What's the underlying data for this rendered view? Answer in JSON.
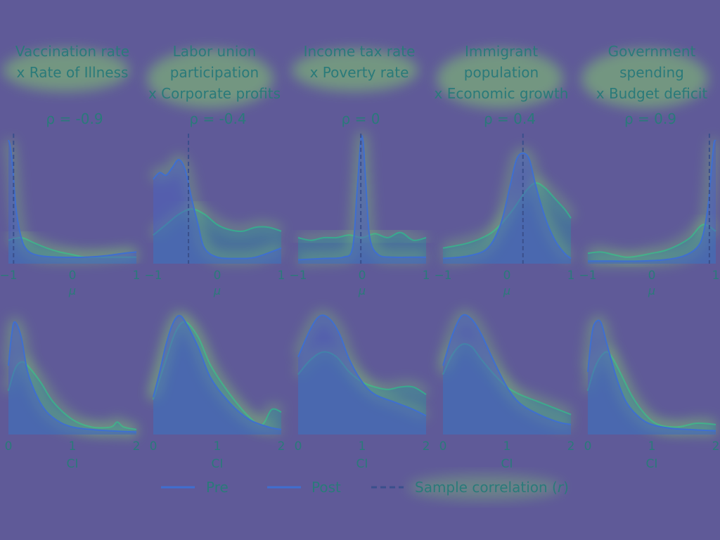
{
  "chart_data": {
    "type": "area",
    "colors": {
      "background": "#5f5a98",
      "pre": "#3f6fd0",
      "post": "#39a98f",
      "fill_pre": "#4a62c0",
      "fill_post": "#2f8aa0",
      "text": "#2a7a7a",
      "ref_line": "#3a4f8c",
      "glow": "#8ce066"
    },
    "legend": {
      "placement": "bottom-center",
      "entries": [
        {
          "label": "Pre",
          "style": "solid",
          "series": "pre"
        },
        {
          "label": "Post",
          "style": "solid",
          "series": "post"
        },
        {
          "label": "Sample correlation (",
          "italic": "r",
          "tail": ")",
          "style": "dashed"
        }
      ]
    },
    "top_row": {
      "xlabel": "μ",
      "xlim": [
        -1,
        1
      ],
      "ticks": [
        -1,
        0,
        1
      ],
      "tick_labels": [
        "−1",
        "0",
        "1"
      ]
    },
    "bottom_row": {
      "xlabel": "CI",
      "xlim": [
        0,
        2
      ],
      "ticks": [
        0,
        1,
        2
      ],
      "tick_labels": [
        "0",
        "1",
        "2"
      ]
    },
    "panels": [
      {
        "title": [
          "Vaccination rate",
          "x Rate of Illness"
        ],
        "rho": "ρ = -0.9",
        "r": -0.92,
        "mu_pre": {
          "x": [
            -1,
            -0.97,
            -0.93,
            -0.88,
            -0.8,
            -0.7,
            -0.5,
            -0.2,
            0.2,
            0.5,
            0.8,
            1
          ],
          "y": [
            0.95,
            0.9,
            0.72,
            0.42,
            0.2,
            0.1,
            0.06,
            0.05,
            0.05,
            0.06,
            0.08,
            0.09
          ]
        },
        "mu_post": {
          "x": [
            -1,
            -0.8,
            -0.6,
            -0.4,
            -0.2,
            0,
            0.2,
            0.4,
            0.6,
            0.8,
            1
          ],
          "y": [
            0.18,
            0.2,
            0.16,
            0.12,
            0.09,
            0.07,
            0.05,
            0.05,
            0.05,
            0.05,
            0.05
          ]
        },
        "ci_pre": {
          "x": [
            0,
            0.05,
            0.1,
            0.2,
            0.3,
            0.45,
            0.6,
            0.8,
            1,
            1.3,
            1.6,
            2
          ],
          "y": [
            0.55,
            0.8,
            0.9,
            0.78,
            0.5,
            0.3,
            0.18,
            0.1,
            0.06,
            0.04,
            0.03,
            0.02
          ]
        },
        "ci_post": {
          "x": [
            0,
            0.1,
            0.2,
            0.3,
            0.5,
            0.7,
            1,
            1.3,
            1.6,
            1.7,
            1.8,
            2
          ],
          "y": [
            0.35,
            0.52,
            0.58,
            0.55,
            0.42,
            0.26,
            0.12,
            0.06,
            0.06,
            0.1,
            0.06,
            0.04
          ]
        }
      },
      {
        "title": [
          "Labor union",
          "participation",
          "x Corporate profits"
        ],
        "rho": "ρ = -0.4",
        "r": -0.45,
        "mu_pre": {
          "x": [
            -1,
            -0.9,
            -0.8,
            -0.7,
            -0.6,
            -0.5,
            -0.4,
            -0.3,
            -0.2,
            0,
            0.3,
            0.6,
            1
          ],
          "y": [
            0.65,
            0.7,
            0.68,
            0.74,
            0.8,
            0.72,
            0.5,
            0.3,
            0.12,
            0.05,
            0.04,
            0.05,
            0.12
          ]
        },
        "mu_post": {
          "x": [
            -1,
            -0.8,
            -0.6,
            -0.4,
            -0.2,
            0,
            0.2,
            0.4,
            0.6,
            0.8,
            1
          ],
          "y": [
            0.22,
            0.3,
            0.38,
            0.42,
            0.38,
            0.3,
            0.26,
            0.25,
            0.28,
            0.28,
            0.25
          ]
        },
        "ci_pre": {
          "x": [
            0,
            0.1,
            0.2,
            0.3,
            0.4,
            0.5,
            0.7,
            0.9,
            1.2,
            1.5,
            1.8,
            2
          ],
          "y": [
            0.3,
            0.5,
            0.72,
            0.88,
            0.95,
            0.9,
            0.7,
            0.45,
            0.25,
            0.12,
            0.06,
            0.04
          ]
        },
        "ci_post": {
          "x": [
            0,
            0.2,
            0.35,
            0.5,
            0.7,
            0.9,
            1.2,
            1.5,
            1.7,
            1.85,
            2
          ],
          "y": [
            0.28,
            0.6,
            0.82,
            0.9,
            0.78,
            0.55,
            0.32,
            0.14,
            0.08,
            0.2,
            0.18
          ]
        }
      },
      {
        "title": [
          "Income tax rate",
          "x Poverty rate"
        ],
        "rho": "ρ = 0",
        "r": -0.02,
        "mu_pre": {
          "x": [
            -1,
            -0.6,
            -0.3,
            -0.15,
            -0.08,
            -0.02,
            0.02,
            0.06,
            0.12,
            0.25,
            0.5,
            0.75,
            1
          ],
          "y": [
            0.03,
            0.04,
            0.05,
            0.12,
            0.55,
            0.95,
            0.92,
            0.6,
            0.2,
            0.07,
            0.05,
            0.05,
            0.05
          ]
        },
        "mu_post": {
          "x": [
            -1,
            -0.8,
            -0.6,
            -0.4,
            -0.2,
            0,
            0.2,
            0.4,
            0.6,
            0.8,
            1
          ],
          "y": [
            0.2,
            0.18,
            0.2,
            0.2,
            0.22,
            0.2,
            0.23,
            0.2,
            0.24,
            0.18,
            0.2
          ]
        },
        "ci_pre": {
          "x": [
            0,
            0.2,
            0.35,
            0.5,
            0.65,
            0.8,
            1,
            1.2,
            1.5,
            1.8,
            2
          ],
          "y": [
            0.62,
            0.85,
            0.95,
            0.92,
            0.8,
            0.6,
            0.42,
            0.32,
            0.26,
            0.2,
            0.15
          ]
        },
        "ci_post": {
          "x": [
            0,
            0.2,
            0.4,
            0.6,
            0.8,
            1,
            1.2,
            1.4,
            1.6,
            1.8,
            2
          ],
          "y": [
            0.48,
            0.6,
            0.66,
            0.62,
            0.5,
            0.42,
            0.38,
            0.36,
            0.38,
            0.38,
            0.32
          ]
        }
      },
      {
        "title": [
          "Immigrant",
          "population",
          "x Economic growth"
        ],
        "rho": "ρ = 0.4",
        "r": 0.25,
        "mu_pre": {
          "x": [
            -1,
            -0.6,
            -0.3,
            -0.1,
            0.05,
            0.15,
            0.25,
            0.35,
            0.45,
            0.6,
            0.75,
            0.9,
            1
          ],
          "y": [
            0.04,
            0.06,
            0.12,
            0.3,
            0.6,
            0.8,
            0.85,
            0.8,
            0.6,
            0.35,
            0.18,
            0.08,
            0.04
          ]
        },
        "mu_post": {
          "x": [
            -1,
            -0.6,
            -0.3,
            -0.1,
            0.1,
            0.3,
            0.45,
            0.6,
            0.75,
            0.9,
            1
          ],
          "y": [
            0.12,
            0.16,
            0.22,
            0.3,
            0.42,
            0.56,
            0.62,
            0.58,
            0.5,
            0.42,
            0.35
          ]
        },
        "ci_pre": {
          "x": [
            0,
            0.15,
            0.3,
            0.45,
            0.6,
            0.8,
            1,
            1.2,
            1.5,
            1.8,
            2
          ],
          "y": [
            0.55,
            0.8,
            0.95,
            0.92,
            0.8,
            0.58,
            0.38,
            0.25,
            0.16,
            0.1,
            0.08
          ]
        },
        "ci_post": {
          "x": [
            0,
            0.15,
            0.3,
            0.45,
            0.6,
            0.8,
            1,
            1.2,
            1.5,
            1.8,
            2
          ],
          "y": [
            0.48,
            0.64,
            0.72,
            0.7,
            0.6,
            0.48,
            0.38,
            0.32,
            0.26,
            0.2,
            0.16
          ]
        }
      },
      {
        "title": [
          "Government",
          "spending",
          "x Budget deficit"
        ],
        "rho": "ρ = 0.9",
        "r": 0.9,
        "mu_pre": {
          "x": [
            -1,
            -0.6,
            -0.2,
            0.2,
            0.5,
            0.7,
            0.8,
            0.88,
            0.93,
            0.97,
            1
          ],
          "y": [
            0.02,
            0.02,
            0.02,
            0.03,
            0.06,
            0.12,
            0.22,
            0.45,
            0.72,
            0.92,
            0.95
          ]
        },
        "mu_post": {
          "x": [
            -1,
            -0.8,
            -0.6,
            -0.4,
            -0.2,
            0,
            0.2,
            0.4,
            0.6,
            0.8,
            1
          ],
          "y": [
            0.08,
            0.09,
            0.07,
            0.05,
            0.06,
            0.08,
            0.1,
            0.14,
            0.2,
            0.3,
            0.25
          ]
        },
        "ci_pre": {
          "x": [
            0,
            0.05,
            0.1,
            0.2,
            0.3,
            0.45,
            0.6,
            0.8,
            1,
            1.3,
            1.6,
            2
          ],
          "y": [
            0.5,
            0.75,
            0.88,
            0.9,
            0.72,
            0.45,
            0.26,
            0.14,
            0.08,
            0.05,
            0.04,
            0.03
          ]
        },
        "ci_post": {
          "x": [
            0,
            0.1,
            0.2,
            0.3,
            0.4,
            0.55,
            0.7,
            0.9,
            1.1,
            1.4,
            1.7,
            2
          ],
          "y": [
            0.35,
            0.52,
            0.62,
            0.66,
            0.6,
            0.45,
            0.3,
            0.16,
            0.08,
            0.06,
            0.09,
            0.08
          ]
        }
      }
    ]
  }
}
